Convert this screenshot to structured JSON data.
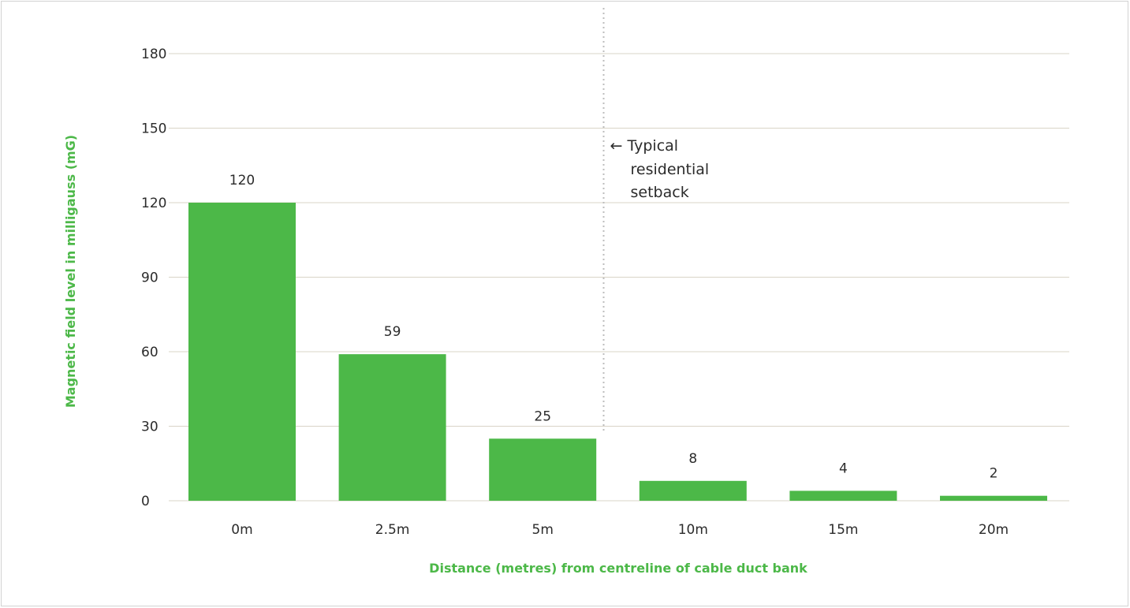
{
  "chart_data": {
    "type": "bar",
    "categories": [
      "0m",
      "2.5m",
      "5m",
      "10m",
      "15m",
      "20m"
    ],
    "values": [
      120,
      59,
      25,
      8,
      4,
      2
    ],
    "value_labels": [
      "120",
      "59",
      "25",
      "8",
      "4",
      "2"
    ],
    "title": "",
    "xlabel": "Distance (metres) from centreline of cable duct bank",
    "ylabel": "Magnetic field level in milligauss (mG)",
    "ylim": [
      0,
      180
    ],
    "yticks": [
      0,
      30,
      60,
      90,
      120,
      150,
      180
    ],
    "ytick_labels": [
      "0",
      "30",
      "60",
      "90",
      "120",
      "150",
      "180"
    ],
    "grid": "horizontal",
    "legend": "none",
    "annotation": {
      "text_lines": [
        "← Typical",
        "residential",
        "setback"
      ],
      "reference_line": "between 5m and 10m"
    },
    "colors": {
      "bar": "#4cb848",
      "axis_title": "#4cb848",
      "gridline": "#d9d4c7",
      "reference_line": "#bdbdbd",
      "text": "#2b2b2b"
    }
  }
}
